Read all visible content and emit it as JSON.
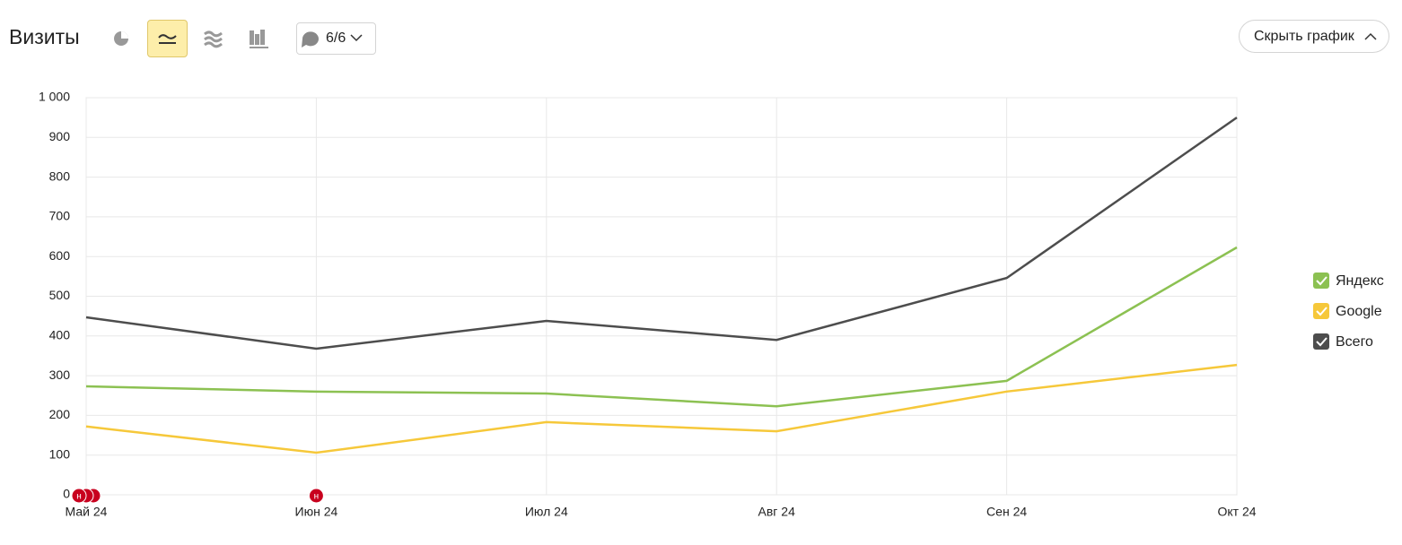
{
  "header": {
    "title": "Визиты",
    "comments": "6/6",
    "hide_button": "Скрыть график"
  },
  "chart_data": {
    "type": "line",
    "categories": [
      "Май 24",
      "Июн 24",
      "Июл 24",
      "Авг 24",
      "Сен 24",
      "Окт 24"
    ],
    "series": [
      {
        "name": "Яндекс",
        "color": "#8cc152",
        "values": [
          273,
          260,
          255,
          223,
          287,
          623
        ]
      },
      {
        "name": "Google",
        "color": "#f6c83a",
        "values": [
          172,
          106,
          183,
          160,
          260,
          327
        ]
      },
      {
        "name": "Всего",
        "color": "#4d4d4d",
        "values": [
          447,
          368,
          438,
          390,
          546,
          950
        ]
      }
    ],
    "ylim": [
      0,
      1000
    ],
    "yticks": [
      0,
      100,
      200,
      300,
      400,
      500,
      600,
      700,
      800,
      900,
      {
        "value": 1000,
        "label": "1 000"
      }
    ],
    "grid": true,
    "annotations": [
      "н",
      "н"
    ],
    "legend": "right"
  }
}
